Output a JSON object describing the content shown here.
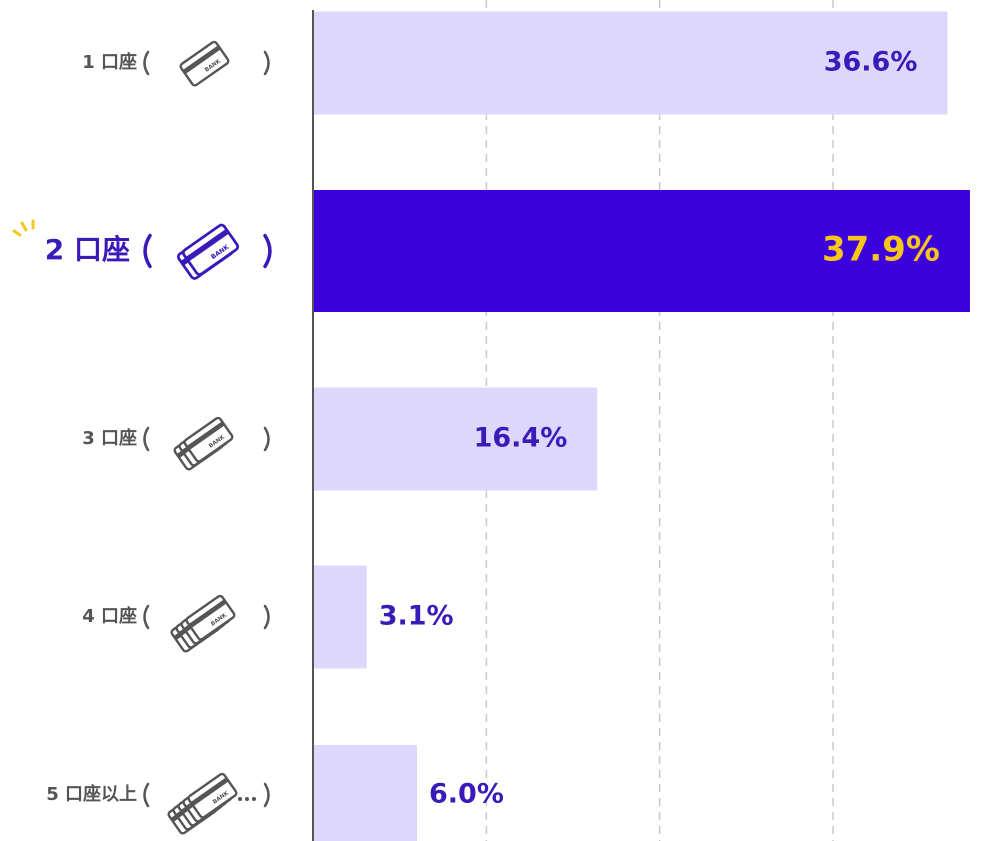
{
  "chart_data": {
    "type": "bar",
    "orientation": "horizontal",
    "categories": [
      "1 口座",
      "2 口座",
      "3 口座",
      "4 口座",
      "5 口座以上"
    ],
    "values": [
      36.6,
      37.9,
      16.4,
      3.1,
      6.0
    ],
    "value_labels": [
      "36.6%",
      "37.9%",
      "16.4%",
      "3.1%",
      "6.0%"
    ],
    "colors": [
      "#ddd8fb",
      "#3b00dc",
      "#ddd8fb",
      "#ddd8fb",
      "#ddd8fb"
    ],
    "label_colors": [
      "#3a1ab8",
      "#f8c51c",
      "#3a1ab8",
      "#3a1ab8",
      "#3a1ab8"
    ],
    "highlight": 1,
    "xlim": [
      0,
      39
    ],
    "xticks": [
      10,
      20,
      30
    ],
    "grid": true
  }
}
